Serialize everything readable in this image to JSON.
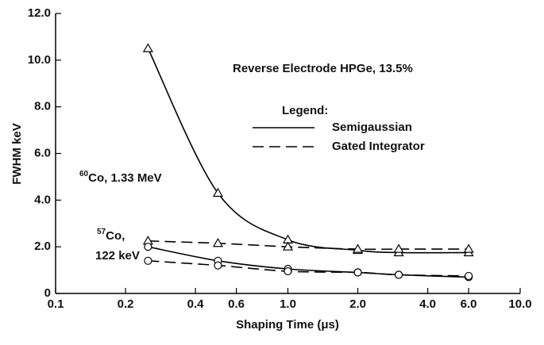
{
  "chart_data": {
    "type": "line",
    "x_label": "Shaping Time (μs)",
    "y_label": "FWHM keV",
    "annotation": "Reverse Electrode HPGe, 13.5%",
    "legend_title": "Legend:",
    "legend": [
      {
        "label": "Semigaussian",
        "dash": "solid"
      },
      {
        "label": "Gated Integrator",
        "dash": "dashed"
      }
    ],
    "curve_labels": [
      {
        "mass": "60",
        "text": "Co, 1.33 MeV"
      },
      {
        "mass": "57",
        "text": "Co,",
        "energy": "122 keV"
      }
    ],
    "x": [
      0.25,
      0.5,
      1.0,
      2.0,
      3.0,
      6.0
    ],
    "series": [
      {
        "legend": 0,
        "marker": "triangle",
        "color": "#000000",
        "values": [
          10.5,
          4.3,
          2.3,
          1.85,
          1.75,
          1.75
        ]
      },
      {
        "legend": 1,
        "marker": "triangle",
        "color": "#000000",
        "values": [
          2.25,
          2.15,
          2.0,
          1.9,
          1.9,
          1.9
        ]
      },
      {
        "legend": 0,
        "marker": "circle",
        "color": "#000000",
        "values": [
          2.0,
          1.4,
          1.05,
          0.9,
          0.8,
          0.7
        ]
      },
      {
        "legend": 1,
        "marker": "circle",
        "color": "#000000",
        "values": [
          1.4,
          1.2,
          0.95,
          0.9,
          0.8,
          0.75
        ]
      }
    ],
    "xlog": true,
    "xlim": [
      0.1,
      10
    ],
    "xticks": [
      0.1,
      0.2,
      0.4,
      0.6,
      {
        "value": 1,
        "label": "1.0"
      },
      {
        "value": 2,
        "label": "2.0"
      },
      {
        "value": 4,
        "label": "4.0"
      },
      {
        "value": 6,
        "label": "6.0"
      },
      {
        "value": 10,
        "label": "10.0"
      }
    ],
    "ylim": [
      0,
      12
    ],
    "yticks": [
      0,
      {
        "value": 2,
        "label": "2.0"
      },
      {
        "value": 4,
        "label": "4.0"
      },
      {
        "value": 6,
        "label": "6.0"
      },
      {
        "value": 8,
        "label": "8.0"
      },
      {
        "value": 10,
        "label": "10.0"
      },
      {
        "value": 12,
        "label": "12.0"
      }
    ],
    "grid": false
  }
}
